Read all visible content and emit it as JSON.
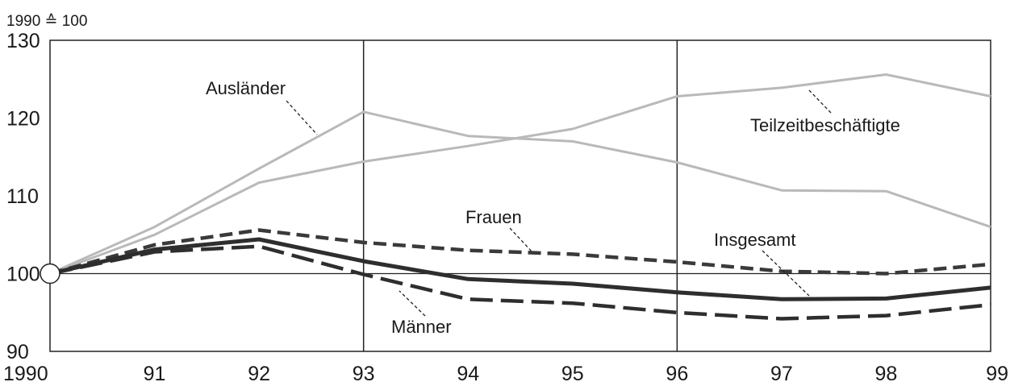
{
  "chart_data": {
    "type": "line",
    "unit_label": "1990 ≙ 100",
    "x": [
      "1990",
      "91",
      "92",
      "93",
      "94",
      "95",
      "96",
      "97",
      "98",
      "99"
    ],
    "ylim": [
      90,
      130
    ],
    "yticks": [
      "90",
      "100",
      "110",
      "120",
      "130"
    ],
    "grid": false,
    "reference_line": 100,
    "vertical_markers": [
      "93",
      "96"
    ],
    "series": [
      {
        "name": "Ausländer",
        "values": [
          100,
          106,
          113.5,
          120.8,
          117.7,
          117.0,
          114.3,
          110.7,
          110.6,
          106.0
        ],
        "color": "#b9b9b9",
        "style": "solid"
      },
      {
        "name": "Teilzeitbeschäftigte",
        "values": [
          100,
          105,
          111.7,
          114.4,
          116.4,
          118.6,
          122.8,
          123.9,
          125.6,
          122.8
        ],
        "color": "#b9b9b9",
        "style": "solid"
      },
      {
        "name": "Frauen",
        "values": [
          100,
          103.7,
          105.6,
          104.0,
          103.0,
          102.5,
          101.5,
          100.3,
          100.0,
          101.2
        ],
        "color": "#3a3a3a",
        "style": "dashed-short"
      },
      {
        "name": "Insgesamt",
        "values": [
          100,
          103.1,
          104.4,
          101.6,
          99.3,
          98.7,
          97.6,
          96.7,
          96.8,
          98.2
        ],
        "color": "#2e2e2e",
        "style": "solid-bold"
      },
      {
        "name": "Männer",
        "values": [
          100,
          102.8,
          103.5,
          99.9,
          96.7,
          96.2,
          95.0,
          94.2,
          94.6,
          96.0
        ],
        "color": "#2e2e2e",
        "style": "dashed-long"
      }
    ]
  }
}
